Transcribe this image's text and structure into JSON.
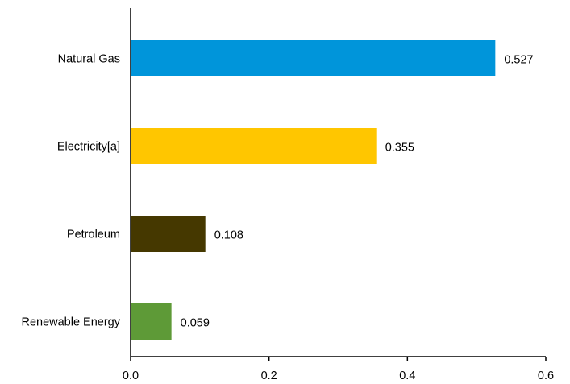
{
  "chart_data": {
    "type": "bar",
    "orientation": "horizontal",
    "categories": [
      "Natural Gas",
      "Electricity[a]",
      "Petroleum",
      "Renewable  Energy"
    ],
    "values": [
      0.527,
      0.355,
      0.108,
      0.059
    ],
    "value_labels": [
      "0.527",
      "0.355",
      "0.108",
      "0.059"
    ],
    "colors": [
      "#0095DA",
      "#FFC600",
      "#453800",
      "#5E9A37"
    ],
    "xlim": [
      0,
      0.6
    ],
    "x_ticks": [
      0,
      0.2,
      0.4,
      0.6
    ],
    "x_tick_labels": [
      "0.0",
      "0.2",
      "0.4",
      "0.6"
    ],
    "grid": false,
    "legend": "none",
    "title": "",
    "xlabel": "",
    "ylabel": ""
  }
}
